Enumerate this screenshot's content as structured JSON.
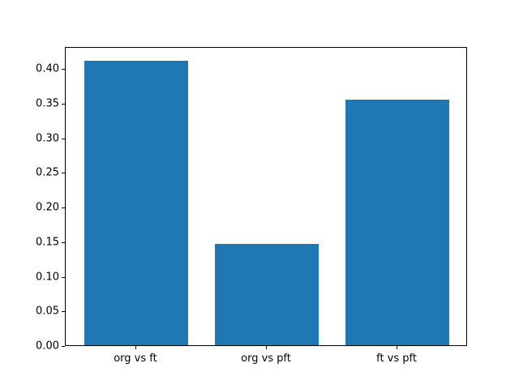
{
  "chart_data": {
    "type": "bar",
    "categories": [
      "org vs ft",
      "org vs pft",
      "ft vs pft"
    ],
    "values": [
      0.411,
      0.146,
      0.355
    ],
    "title": "",
    "xlabel": "",
    "ylabel": "",
    "ylim": [
      0,
      0.432
    ],
    "xlim": [
      -0.54,
      2.54
    ],
    "bar_width": 0.8,
    "yticks": [
      0.0,
      0.05,
      0.1,
      0.15,
      0.2,
      0.25,
      0.3,
      0.35,
      0.4
    ],
    "ytick_labels": [
      "0.00",
      "0.05",
      "0.10",
      "0.15",
      "0.20",
      "0.25",
      "0.30",
      "0.35",
      "0.40"
    ],
    "bar_color": "#1f77b4",
    "axis_color": "#000000",
    "background": "#ffffff",
    "grid": false,
    "legend": null
  }
}
